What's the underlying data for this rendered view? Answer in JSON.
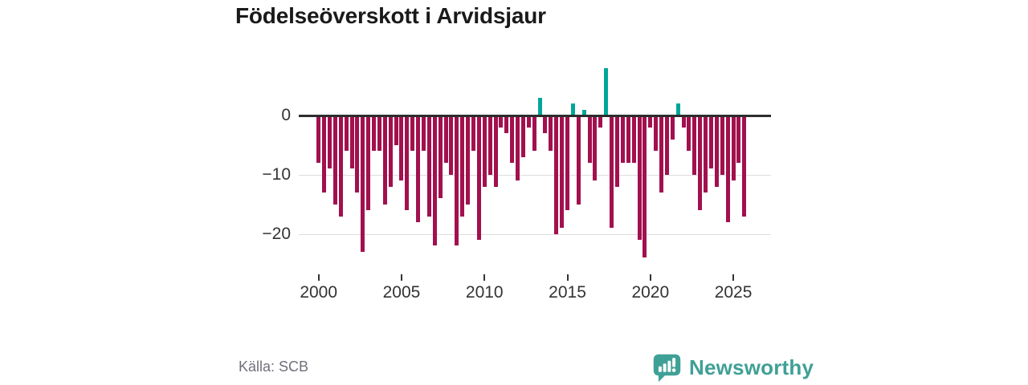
{
  "title": "Födelseöverskott i Arvidsjaur",
  "source": "Källa: SCB",
  "brand": {
    "name": "Newsworthy",
    "color": "#3FA096",
    "icon": "bar-chart-speech-bubble"
  },
  "colors": {
    "negative_bar": "#A2104E",
    "positive_bar": "#00A69A",
    "zero_line": "#2D2D2D",
    "gridline": "#DDDDDD",
    "axis_text": "#333333",
    "source_text": "#70707A",
    "title_text": "#1A1A1A"
  },
  "chart_data": {
    "type": "bar",
    "title": "Födelseöverskott i Arvidsjaur",
    "xlabel": "",
    "ylabel": "",
    "grid": true,
    "legend": false,
    "start_year": 2000,
    "periods_per_year": 3,
    "x_ticks": [
      2000,
      2005,
      2010,
      2015,
      2020,
      2025
    ],
    "x_tick_labels": [
      "2000",
      "2005",
      "2010",
      "2015",
      "2020",
      "2025"
    ],
    "y_ticks": [
      0,
      -10,
      -20
    ],
    "y_tick_labels": [
      "0",
      "−10",
      "−20"
    ],
    "ylim": [
      -25,
      9
    ],
    "series": [
      {
        "name": "Födelseöverskott",
        "values": [
          -8,
          -13,
          -9,
          -15,
          -17,
          -6,
          -9,
          -13,
          -23,
          -16,
          -6,
          -6,
          -15,
          -12,
          -5,
          -11,
          -16,
          -6,
          -18,
          -6,
          -17,
          -22,
          -14,
          -8,
          -10,
          -22,
          -17,
          -15,
          -6,
          -21,
          -12,
          -10,
          -12,
          -2,
          -3,
          -8,
          -11,
          -7,
          -2,
          -6,
          3,
          -3,
          -6,
          -20,
          -19,
          -16,
          2,
          -15,
          1,
          -8,
          -11,
          -2,
          8,
          -19,
          -12,
          -8,
          -8,
          -8,
          -21,
          -24,
          -2,
          -6,
          -13,
          -10,
          -4,
          2,
          -2,
          -6,
          -10,
          -16,
          -13,
          -9,
          -12,
          -10,
          -18,
          -11,
          -8,
          -17
        ]
      }
    ]
  }
}
